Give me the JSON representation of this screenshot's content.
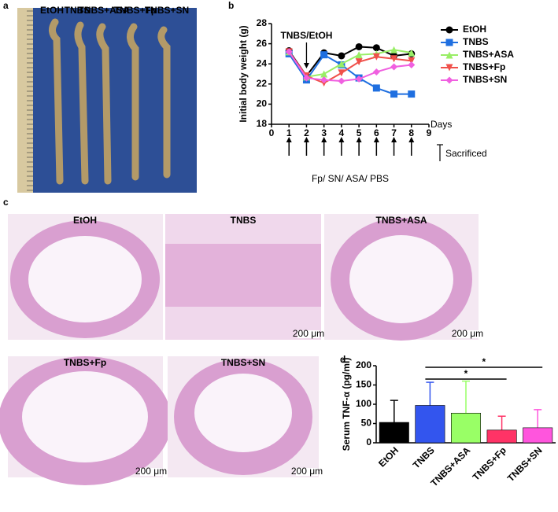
{
  "figure": {
    "panel_labels": [
      "a",
      "b",
      "c",
      "d"
    ],
    "photo_labels": [
      "EtOH",
      "TNBS",
      "TNBS+ASA",
      "TNBS+Fp",
      "TNBS+SN"
    ],
    "histology": [
      {
        "label": "EtOH"
      },
      {
        "label": "TNBS",
        "scale": "200 μm"
      },
      {
        "label": "TNBS+ASA",
        "scale": "200 μm"
      },
      {
        "label": "TNBS+Fp",
        "scale": "200 μm"
      },
      {
        "label": "TNBS+SN",
        "scale": "200 μm"
      }
    ]
  },
  "chart_data": [
    {
      "type": "line",
      "ylabel": "Initial body weight (g)",
      "xlabel": "Days",
      "x": [
        1,
        2,
        3,
        4,
        5,
        6,
        7,
        8
      ],
      "xlim": [
        0,
        9
      ],
      "xticks": [
        0,
        1,
        2,
        3,
        4,
        5,
        6,
        7,
        8,
        9
      ],
      "ylim": [
        18,
        28
      ],
      "yticks": [
        18,
        20,
        22,
        24,
        26,
        28
      ],
      "annotations": {
        "dose": "TNBS/EtOH",
        "treatment": "Fp/ SN/ ASA/ PBS",
        "end": "Sacrificed"
      },
      "legend": "right",
      "series": [
        {
          "name": "EtOH",
          "color": "#000000",
          "marker": "circle",
          "values": [
            25.3,
            22.8,
            25.1,
            24.8,
            25.7,
            25.6,
            24.8,
            25.0
          ]
        },
        {
          "name": "TNBS",
          "color": "#1f6fe0",
          "marker": "square",
          "values": [
            25.0,
            22.4,
            24.9,
            23.9,
            22.6,
            21.6,
            21.0,
            21.0
          ]
        },
        {
          "name": "TNBS+ASA",
          "color": "#99ee66",
          "marker": "triangle-up",
          "values": [
            25.2,
            22.7,
            23.0,
            24.0,
            24.9,
            25.0,
            25.4,
            25.1
          ]
        },
        {
          "name": "TNBS+Fp",
          "color": "#f0504a",
          "marker": "triangle-down",
          "values": [
            25.2,
            22.8,
            22.1,
            23.1,
            24.2,
            24.7,
            24.5,
            24.3
          ]
        },
        {
          "name": "TNBS+SN",
          "color": "#f060e0",
          "marker": "diamond",
          "values": [
            25.2,
            22.6,
            22.4,
            22.3,
            22.5,
            23.2,
            23.7,
            23.9
          ]
        }
      ]
    },
    {
      "type": "bar",
      "ylabel": "Serum TNF-α  (pg/ml)",
      "categories": [
        "EtOH",
        "TNBS",
        "TNBS+ASA",
        "TNBS+Fp",
        "TNBS+SN"
      ],
      "values": [
        53,
        97,
        77,
        33,
        39
      ],
      "errors": [
        57,
        60,
        83,
        36,
        47
      ],
      "colors": [
        "#000000",
        "#3355ee",
        "#99ff66",
        "#ff3366",
        "#ff55dd"
      ],
      "ylim": [
        0,
        200
      ],
      "yticks": [
        0,
        50,
        100,
        150,
        200
      ],
      "significance": [
        {
          "between": [
            1,
            4
          ],
          "label": "*"
        },
        {
          "between": [
            1,
            3
          ],
          "label": "*"
        }
      ]
    }
  ]
}
